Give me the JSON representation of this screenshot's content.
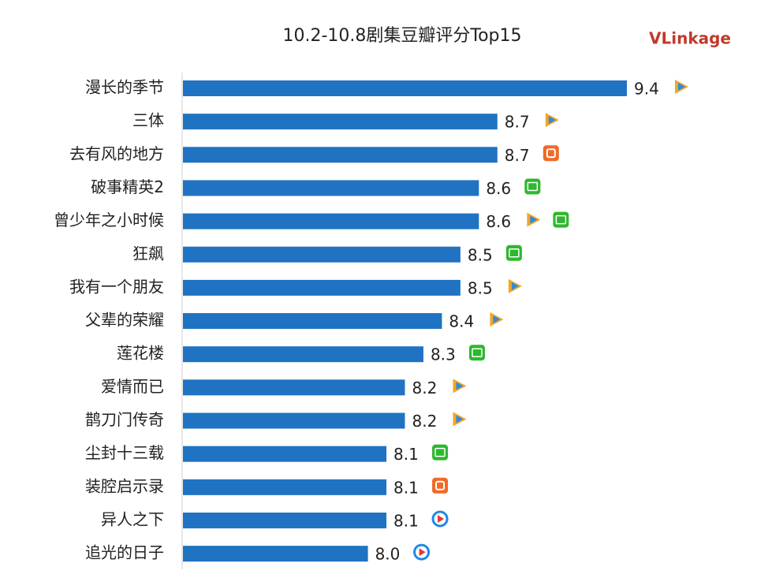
{
  "logo": "VLinkage",
  "chart_data": {
    "type": "hbar",
    "title": "10.2-10.8剧集豆瓣评分Top15",
    "categories": [
      "漫长的季节",
      "三体",
      "去有风的地方",
      "破事精英2",
      "曾少年之小时候",
      "狂飙",
      "我有一个朋友",
      "父辈的荣耀",
      "莲花楼",
      "爱情而已",
      "鹊刀门传奇",
      "尘封十三载",
      "装腔启示录",
      "异人之下",
      "追光的日子"
    ],
    "values": [
      9.4,
      8.7,
      8.7,
      8.6,
      8.6,
      8.5,
      8.5,
      8.4,
      8.3,
      8.2,
      8.2,
      8.1,
      8.1,
      8.1,
      8.0
    ],
    "value_labels": [
      "9.4",
      "8.7",
      "8.7",
      "8.6",
      "8.6",
      "8.5",
      "8.5",
      "8.4",
      "8.3",
      "8.2",
      "8.2",
      "8.1",
      "8.1",
      "8.1",
      "8.0"
    ],
    "color": "#1f73c2",
    "xlim": [
      7,
      9.4
    ]
  }
}
